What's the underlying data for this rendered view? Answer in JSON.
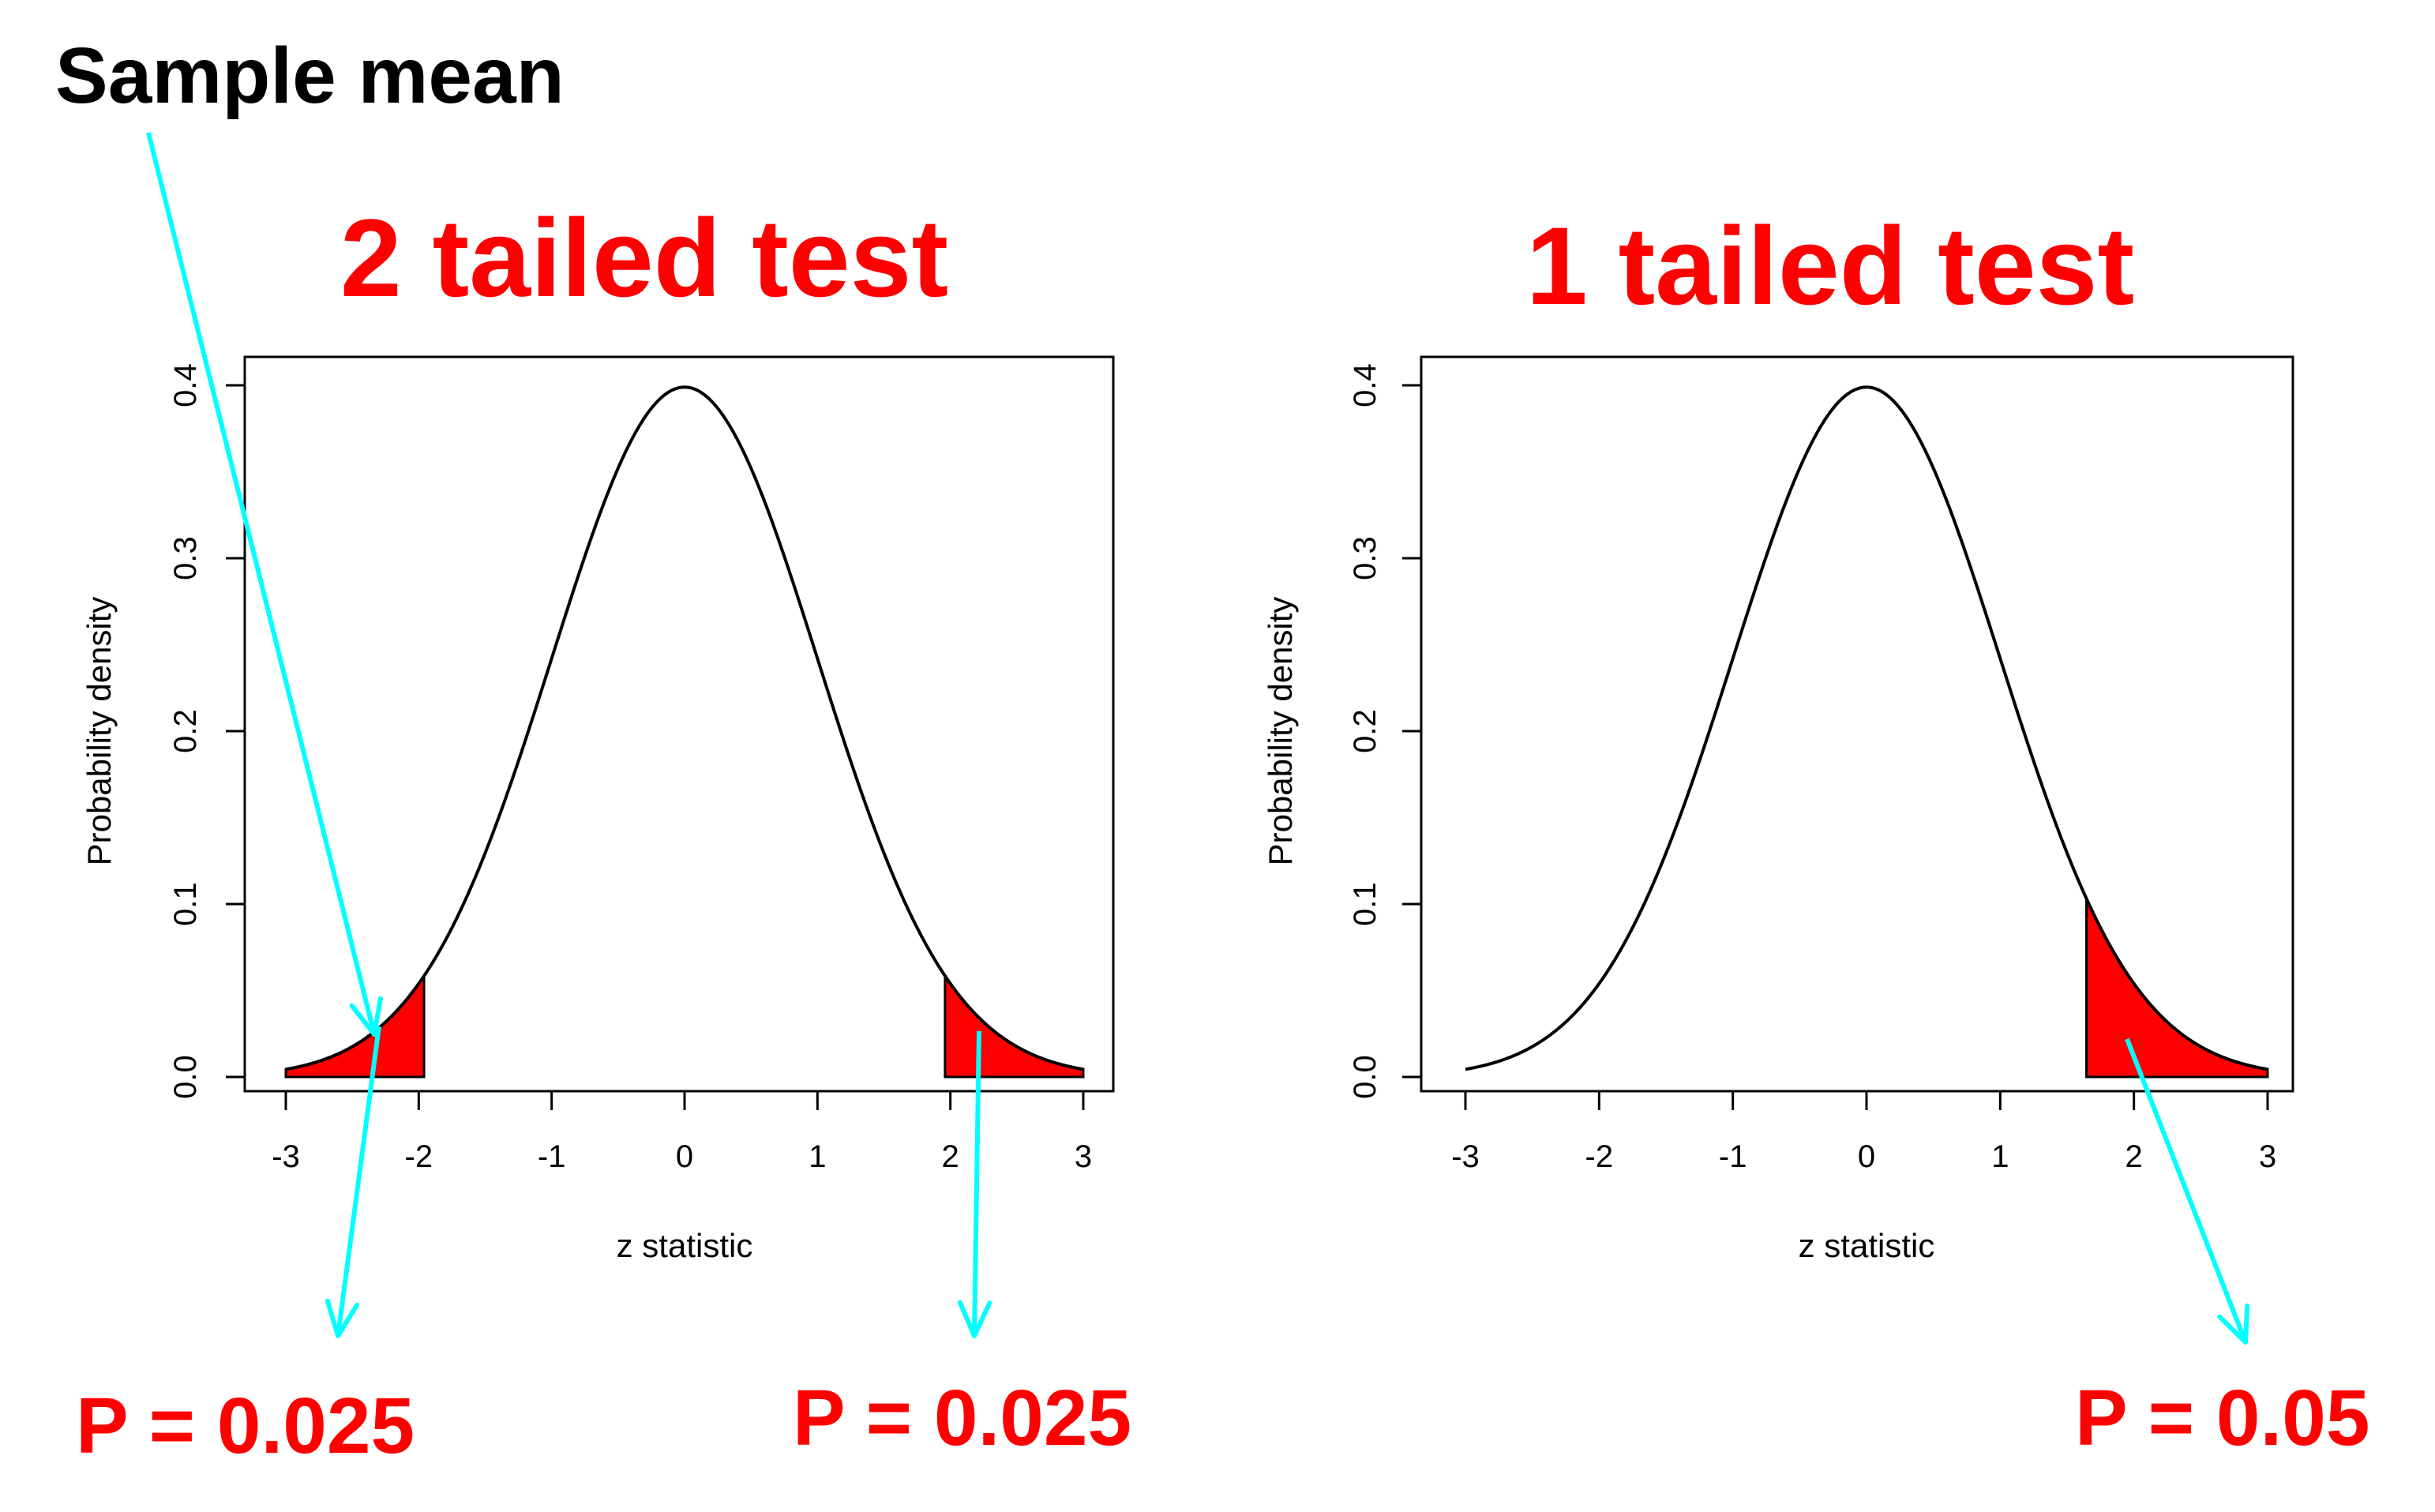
{
  "annotation": {
    "sample_mean_label": "Sample mean",
    "arrow_color": "#00ffff"
  },
  "colors": {
    "title": "#ff0000",
    "fill": "#ff0000",
    "curve": "#000000"
  },
  "chart_data": [
    {
      "type": "area",
      "title": "2 tailed test",
      "xlabel": "z statistic",
      "ylabel": "Probability density",
      "xlim": [
        -3,
        3
      ],
      "ylim": [
        0,
        0.4
      ],
      "x_ticks": [
        "-3",
        "-2",
        "-1",
        "0",
        "1",
        "2",
        "3"
      ],
      "y_ticks": [
        "0.0",
        "0.1",
        "0.2",
        "0.3",
        "0.4"
      ],
      "curve": "standard normal density",
      "shaded_regions": [
        {
          "from": -3,
          "to": -1.96,
          "label": "P = 0.025"
        },
        {
          "from": 1.96,
          "to": 3,
          "label": "P = 0.025"
        }
      ],
      "grid": false
    },
    {
      "type": "area",
      "title": "1 tailed test",
      "xlabel": "z statistic",
      "ylabel": "Probability density",
      "xlim": [
        -3,
        3
      ],
      "ylim": [
        0,
        0.4
      ],
      "x_ticks": [
        "-3",
        "-2",
        "-1",
        "0",
        "1",
        "2",
        "3"
      ],
      "y_ticks": [
        "0.0",
        "0.1",
        "0.2",
        "0.3",
        "0.4"
      ],
      "curve": "standard normal density",
      "shaded_regions": [
        {
          "from": 1.645,
          "to": 3,
          "label": "P = 0.05"
        }
      ],
      "grid": false
    }
  ]
}
